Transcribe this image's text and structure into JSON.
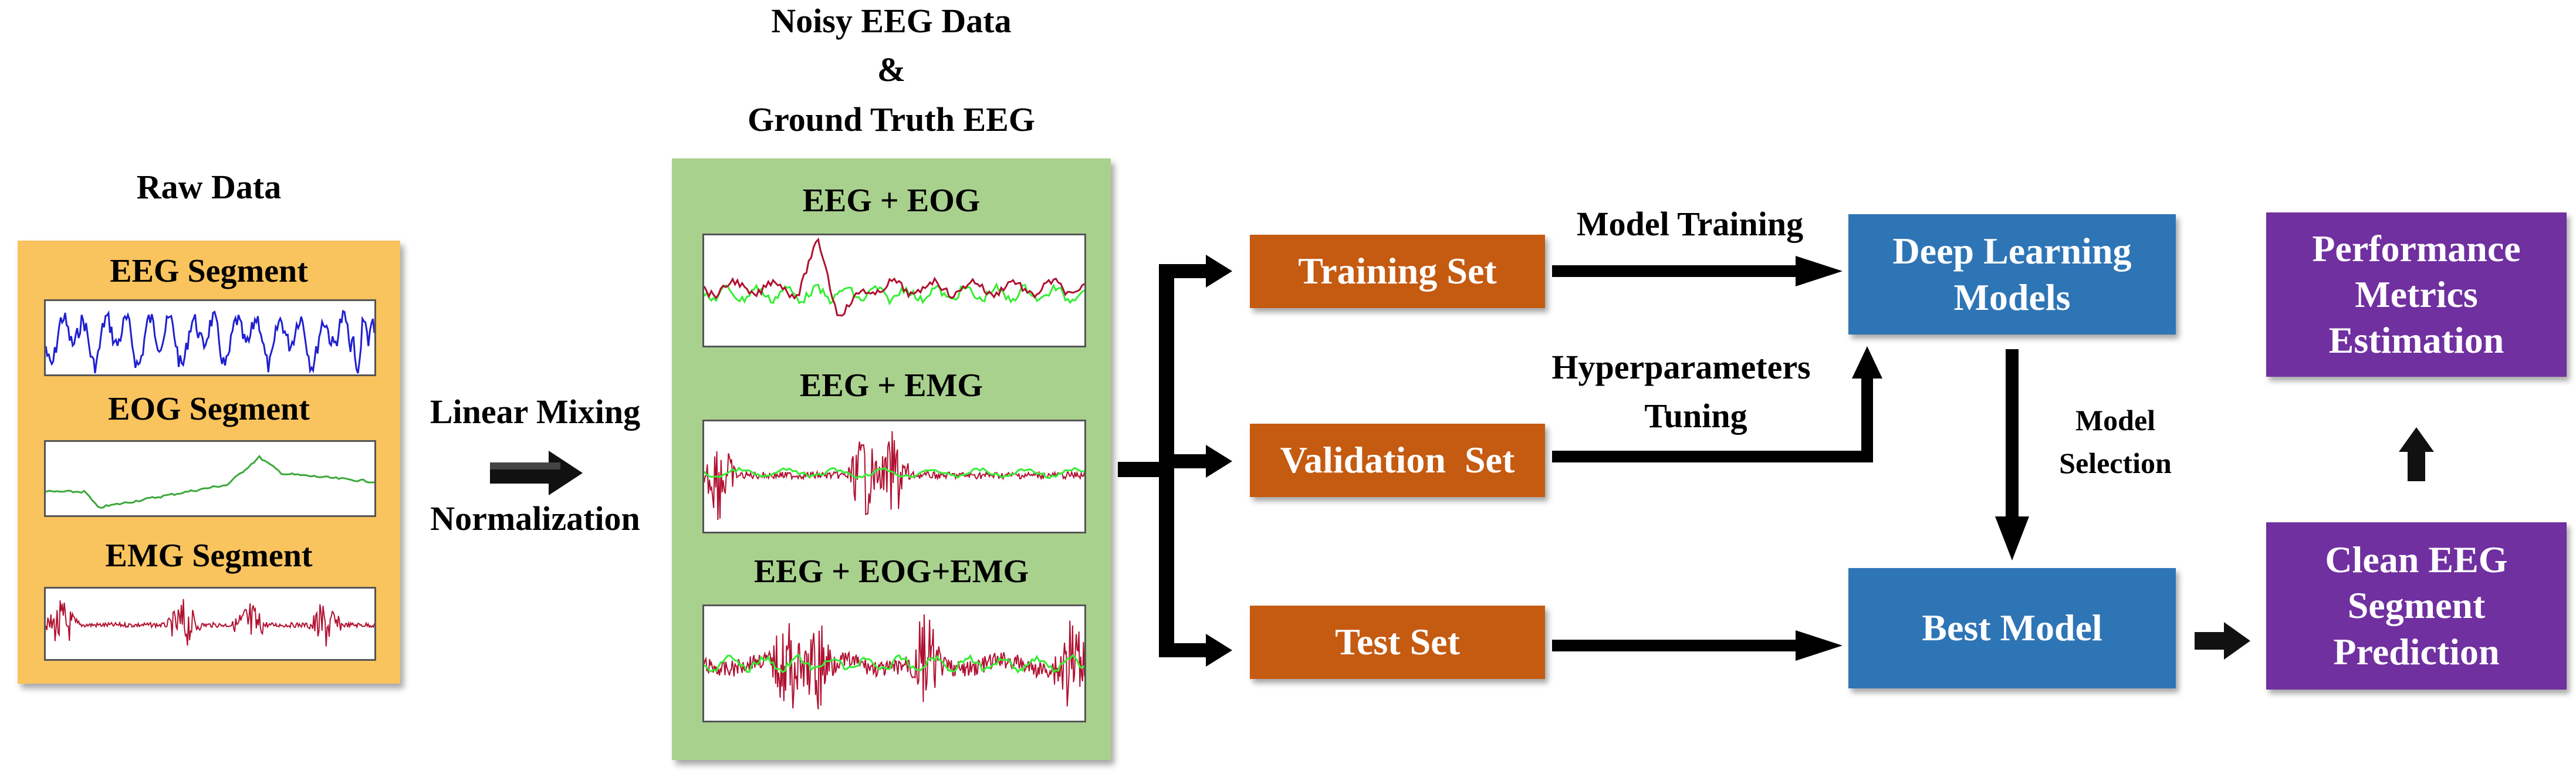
{
  "header": {
    "line1": "Noisy EEG Data",
    "line2": "&",
    "line3": "Ground Truth EEG"
  },
  "raw": {
    "title": "Raw Data",
    "segments": [
      "EEG Segment",
      "EOG Segment",
      "EMG Segment"
    ]
  },
  "mixing": {
    "line1": "Linear Mixing",
    "line2": "Normalization"
  },
  "noisy": {
    "segments": [
      "EEG + EOG",
      "EEG + EMG",
      "EEG + EOG+EMG"
    ]
  },
  "sets": {
    "training": "Training Set",
    "validation": "Validation  Set",
    "test": "Test Set"
  },
  "flow": {
    "model_training": "Model Training",
    "hyper_line1": "Hyperparameters",
    "hyper_line2": "Tuning",
    "model_selection": "Model\nSelection"
  },
  "models": {
    "deep": "Deep Learning\nModels",
    "best": "Best Model"
  },
  "outputs": {
    "metrics": "Performance\nMetrics\nEstimation",
    "prediction": "Clean EEG\nSegment\nPrediction"
  },
  "colors": {
    "raw_panel": "#f9c35d",
    "noisy_panel": "#a9d18e",
    "set_boxes": "#c55a11",
    "model_boxes": "#2e75b6",
    "output_boxes": "#7030a0",
    "eeg_trace": "#1f1fd0",
    "eog_trace": "#3aa83a",
    "emg_trace": "#b01030",
    "clean_trace": "#33ee33"
  }
}
